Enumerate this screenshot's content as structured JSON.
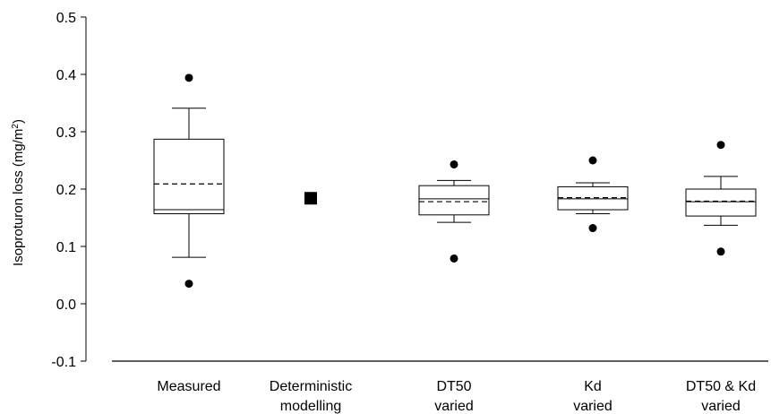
{
  "chart_data": {
    "type": "box",
    "ylabel": "Isoproturon loss (mg/m2)",
    "ylabel_main": "Isoproturon loss (mg/m",
    "ylabel_sup": "2",
    "ylabel_end": ")",
    "ylim": [
      -0.1,
      0.5
    ],
    "yticks": [
      -0.1,
      0.0,
      0.1,
      0.2,
      0.3,
      0.4,
      0.5
    ],
    "ytick_labels": [
      "-0.1",
      "0.0",
      "0.1",
      "0.2",
      "0.3",
      "0.4",
      "0.5"
    ],
    "grid": false,
    "categories": [
      {
        "line1": "Measured",
        "line2": ""
      },
      {
        "line1": "Deterministic",
        "line2": "modelling"
      },
      {
        "line1": "DT50",
        "line2": "varied"
      },
      {
        "line1": "Kd",
        "line2": "varied"
      },
      {
        "line1": "DT50 & Kd",
        "line2": "varied"
      }
    ],
    "boxes": [
      {
        "category": "Measured",
        "whisker_low": 0.081,
        "q1": 0.157,
        "median": 0.164,
        "mean": 0.209,
        "q3": 0.287,
        "whisker_high": 0.341,
        "outliers": [
          0.394,
          0.035
        ]
      },
      {
        "category": "Deterministic modelling",
        "point": 0.184
      },
      {
        "category": "DT50 varied",
        "whisker_low": 0.142,
        "q1": 0.155,
        "median": 0.183,
        "mean": 0.178,
        "q3": 0.206,
        "whisker_high": 0.215,
        "outliers": [
          0.243,
          0.079
        ]
      },
      {
        "category": "Kd varied",
        "whisker_low": 0.157,
        "q1": 0.164,
        "median": 0.183,
        "mean": 0.185,
        "q3": 0.204,
        "whisker_high": 0.211,
        "outliers": [
          0.25,
          0.132
        ]
      },
      {
        "category": "DT50 & Kd varied",
        "whisker_low": 0.137,
        "q1": 0.153,
        "median": 0.178,
        "mean": 0.179,
        "q3": 0.2,
        "whisker_high": 0.222,
        "outliers": [
          0.277,
          0.091
        ]
      }
    ]
  }
}
